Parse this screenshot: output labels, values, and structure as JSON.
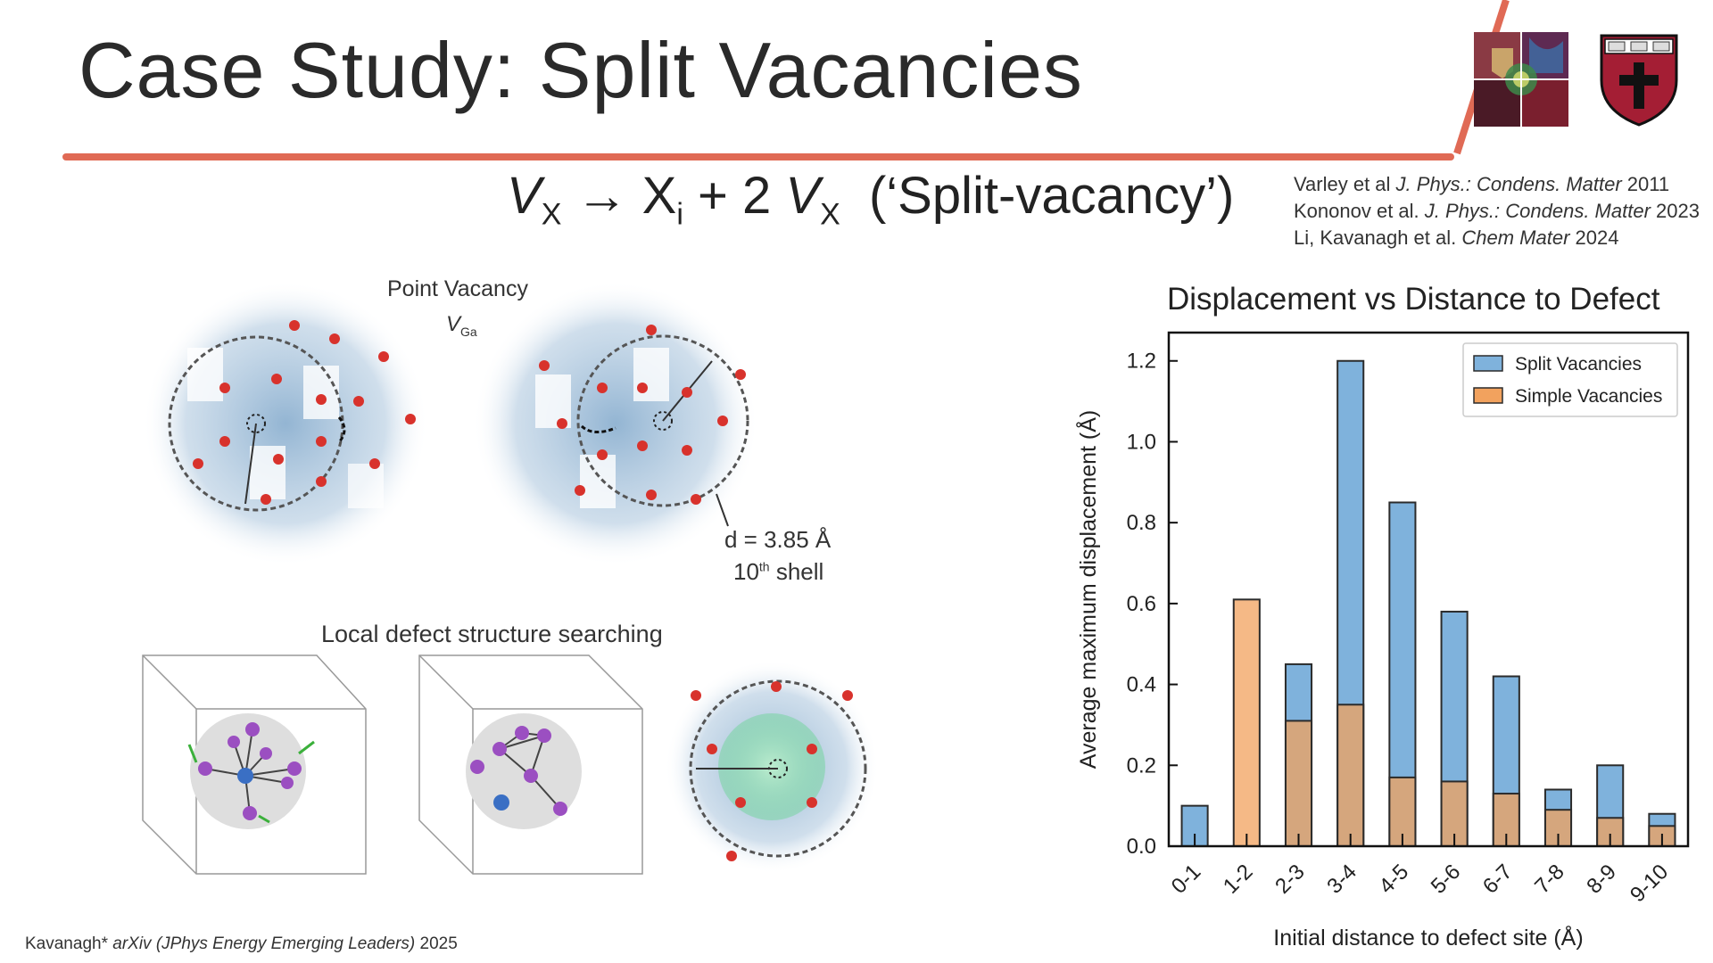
{
  "slide": {
    "title": "Case Study: Split Vacancies",
    "equation": {
      "lhs_var": "V",
      "lhs_sub": "X",
      "arrow": "→",
      "term1": "X",
      "term1_sub": "i",
      "plus": "+ 2",
      "term2_var": "V",
      "term2_sub": "X",
      "label": "(‘Split-vacancy’)"
    },
    "references": [
      {
        "authors": "Varley et al",
        "journal": "J. Phys.: Condens. Matter",
        "year": "2011"
      },
      {
        "authors": "Kononov et al.",
        "journal": "J. Phys.: Condens. Matter",
        "year": "2023"
      },
      {
        "authors": "Li, Kavanagh et al.",
        "journal": "Chem Mater",
        "year": "2024"
      }
    ],
    "footer": {
      "author": "Kavanagh*",
      "venue": "arXiv (JPhys Energy Emerging Leaders)",
      "year": "2025"
    }
  },
  "figure": {
    "point_vacancy_label": "Point Vacancy",
    "vga_var": "V",
    "vga_sub": "Ga",
    "distance_label": "d = 3.85 Å",
    "shell_number": "10",
    "shell_sup": "th",
    "shell_word": "shell",
    "search_label": "Local defect structure searching"
  },
  "colors": {
    "accent": "#e06a55",
    "split": "#7fb2dc",
    "split_edge": "#2b2b2b",
    "simple": "#f2a25e"
  },
  "chart_data": {
    "type": "bar",
    "title": "Displacement vs Distance to Defect",
    "xlabel": "Initial distance to defect site (Å)",
    "ylabel": "Average maximum displacement (Å)",
    "categories": [
      "0-1",
      "1-2",
      "2-3",
      "3-4",
      "4-5",
      "5-6",
      "6-7",
      "7-8",
      "8-9",
      "9-10"
    ],
    "ylim": [
      0,
      1.27
    ],
    "yticks": [
      "0.0",
      "0.2",
      "0.4",
      "0.6",
      "0.8",
      "1.0",
      "1.2"
    ],
    "grid": false,
    "legend_position": "top-right",
    "series": [
      {
        "name": "Split Vacancies",
        "values": [
          0.1,
          0.0,
          0.45,
          1.2,
          0.85,
          0.58,
          0.42,
          0.14,
          0.2,
          0.08
        ]
      },
      {
        "name": "Simple Vacancies",
        "values": [
          0.0,
          0.61,
          0.31,
          0.35,
          0.17,
          0.16,
          0.13,
          0.09,
          0.07,
          0.05
        ]
      }
    ]
  }
}
